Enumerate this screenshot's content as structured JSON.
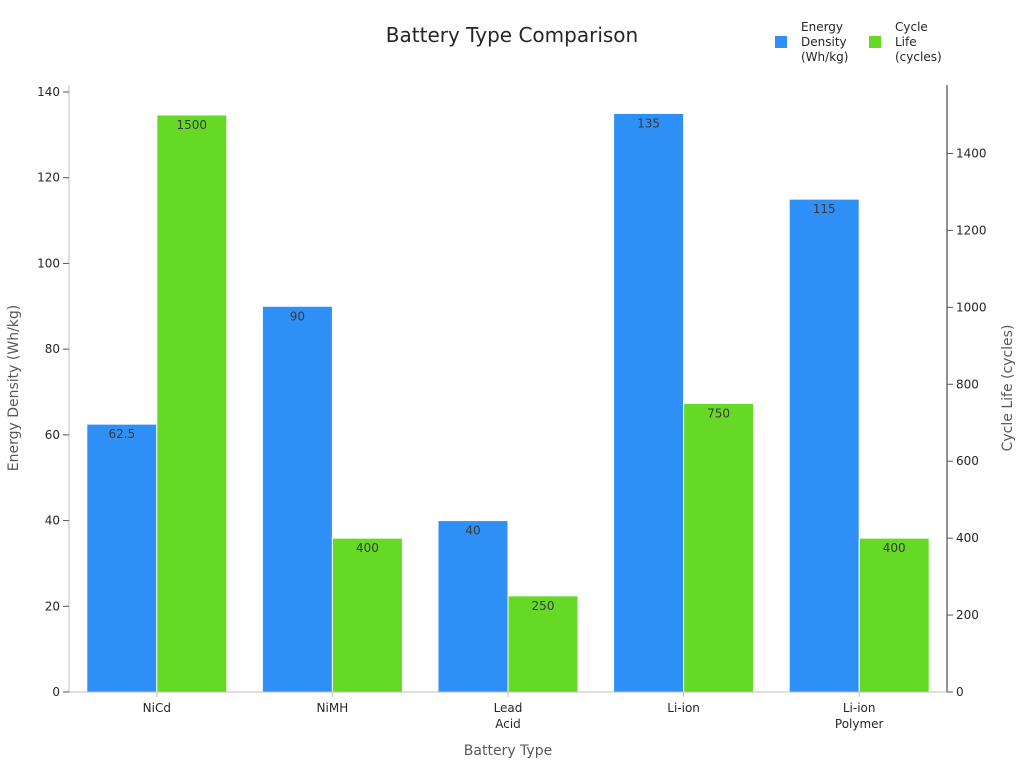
{
  "chart_data": {
    "type": "bar",
    "title": "Battery Type Comparison",
    "xlabel": "Battery Type",
    "ylabel_left": "Energy Density (Wh/kg)",
    "ylabel_right": "Cycle Life (cycles)",
    "categories": [
      [
        "NiCd"
      ],
      [
        "NiMH"
      ],
      [
        "Lead",
        "Acid"
      ],
      [
        "Li-ion"
      ],
      [
        "Li-ion",
        "Polymer"
      ]
    ],
    "series": [
      {
        "name": [
          "Energy",
          "Density",
          "(Wh/kg)"
        ],
        "axis": "left",
        "color": "#2e90f6",
        "values": [
          62.5,
          90,
          40,
          135,
          115
        ],
        "labels": [
          "62.5",
          "90",
          "40",
          "135",
          "115"
        ]
      },
      {
        "name": [
          "Cycle",
          "Life",
          "(cycles)"
        ],
        "axis": "right",
        "color": "#66d926",
        "values": [
          1500,
          400,
          250,
          750,
          400
        ],
        "labels": [
          "1500",
          "400",
          "250",
          "750",
          "400"
        ]
      }
    ],
    "ylim_left": [
      0,
      140
    ],
    "yticks_left": [
      0,
      20,
      40,
      60,
      80,
      100,
      120,
      140
    ],
    "ylim_right": [
      0,
      1500
    ],
    "yticks_right": [
      0,
      200,
      400,
      600,
      800,
      1000,
      1200,
      1400
    ],
    "grid": false,
    "legend_position": "top-right"
  }
}
